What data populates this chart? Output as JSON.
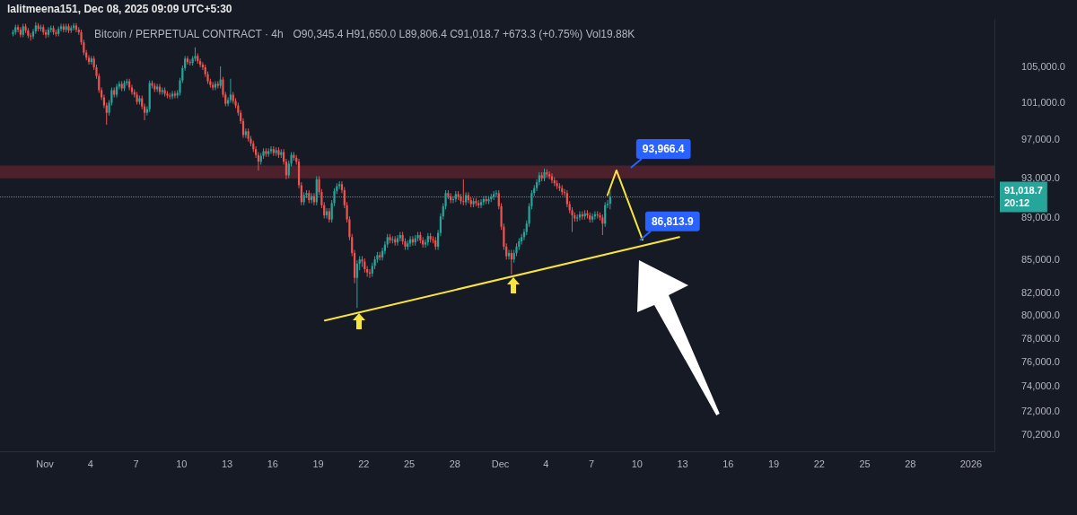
{
  "chart_data": {
    "type": "candlestick",
    "title": "Bitcoin / PERPETUAL CONTRACT · 4h",
    "subtitle": "O90,345.4 H91,650.0 L89,806.4 C91,018.7 +673.3 (+0.75%) Vol19.88K",
    "annotations": [
      "lalitmeena151, Dec 08, 2025 09:09 UTC+5:30",
      "20:12",
      {
        "text": "93,966.4",
        "x": "2025-12-09T14:10",
        "y": 93966.4
      },
      {
        "text": "86,813.9",
        "x": "2025-12-10T04:30",
        "y": 86813.9
      }
    ],
    "log": "y",
    "marker": "none",
    "line_style": "solid",
    "xlim": [
      "2025-10-29T01:00",
      "2026-01-02T13:00"
    ],
    "xticks": [
      {
        "value": "2025-11-01",
        "label": "Nov"
      },
      {
        "value": "2025-11-04",
        "label": "4"
      },
      {
        "value": "2025-11-07",
        "label": "7"
      },
      {
        "value": "2025-11-10",
        "label": "10"
      },
      {
        "value": "2025-11-13",
        "label": "13"
      },
      {
        "value": "2025-11-16",
        "label": "16"
      },
      {
        "value": "2025-11-19",
        "label": "19"
      },
      {
        "value": "2025-11-22",
        "label": "22"
      },
      {
        "value": "2025-11-25",
        "label": "25"
      },
      {
        "value": "2025-11-28",
        "label": "28"
      },
      {
        "value": "2025-12-01",
        "label": "Dec"
      },
      {
        "value": "2025-12-04",
        "label": "4"
      },
      {
        "value": "2025-12-07",
        "label": "7"
      },
      {
        "value": "2025-12-10",
        "label": "10"
      },
      {
        "value": "2025-12-13",
        "label": "13"
      },
      {
        "value": "2025-12-16",
        "label": "16"
      },
      {
        "value": "2025-12-19",
        "label": "19"
      },
      {
        "value": "2025-12-22",
        "label": "22"
      },
      {
        "value": "2025-12-25",
        "label": "25"
      },
      {
        "value": "2025-12-28",
        "label": "28"
      },
      {
        "value": "2026-01-01",
        "label": "2026"
      }
    ],
    "ylim": [
      68900,
      110500
    ],
    "yticks": [
      {
        "value": 105000,
        "label": "105,000.0"
      },
      {
        "value": 101000,
        "label": "101,000.0"
      },
      {
        "value": 97000,
        "label": "97,000.0"
      },
      {
        "value": 93000,
        "label": "93,000.0"
      },
      {
        "value": 89000,
        "label": "89,000.0"
      },
      {
        "value": 85000,
        "label": "85,000.0"
      },
      {
        "value": 82000,
        "label": "82,000.0"
      },
      {
        "value": 80000,
        "label": "80,000.0"
      },
      {
        "value": 78000,
        "label": "78,000.0"
      },
      {
        "value": 76000,
        "label": "76,000.0"
      },
      {
        "value": 74000,
        "label": "74,000.0"
      },
      {
        "value": 72000,
        "label": "72,000.0"
      },
      {
        "value": 70200,
        "label": "70,200.0"
      }
    ],
    "ref_lines": [
      {
        "axis": "y",
        "value": 91018.7,
        "label": "91,018.7",
        "color": "#26a69a",
        "line_style": "dotted"
      }
    ],
    "bands": [
      {
        "axis": "y",
        "from": 92900,
        "to": 94200,
        "color": "#f23645"
      }
    ],
    "series": [
      {
        "type": "candlestick",
        "x": [
          "2025-10-29T21:30",
          "2025-10-30T01:30",
          "2025-10-30T05:30",
          "2025-10-30T09:30",
          "2025-10-30T13:30",
          "2025-10-30T17:30",
          "2025-10-30T21:30",
          "2025-10-31T01:30",
          "2025-10-31T05:30",
          "2025-10-31T09:30",
          "2025-10-31T13:30",
          "2025-10-31T17:30",
          "2025-10-31T21:30",
          "2025-11-01T01:30",
          "2025-11-01T05:30",
          "2025-11-01T09:30",
          "2025-11-01T13:30",
          "2025-11-01T17:30",
          "2025-11-01T21:30",
          "2025-11-02T01:30",
          "2025-11-02T05:30",
          "2025-11-02T09:30",
          "2025-11-02T13:30",
          "2025-11-02T17:30",
          "2025-11-02T21:30",
          "2025-11-03T01:30",
          "2025-11-03T05:30",
          "2025-11-03T09:30",
          "2025-11-03T13:30",
          "2025-11-03T17:30",
          "2025-11-03T21:30",
          "2025-11-04T01:30",
          "2025-11-04T05:30",
          "2025-11-04T09:30",
          "2025-11-04T13:30",
          "2025-11-04T17:30",
          "2025-11-04T21:30",
          "2025-11-05T01:30",
          "2025-11-05T05:30",
          "2025-11-05T09:30",
          "2025-11-05T13:30",
          "2025-11-05T17:30",
          "2025-11-05T21:30",
          "2025-11-06T01:30",
          "2025-11-06T05:30",
          "2025-11-06T09:30",
          "2025-11-06T13:30",
          "2025-11-06T17:30",
          "2025-11-06T21:30",
          "2025-11-07T01:30",
          "2025-11-07T05:30",
          "2025-11-07T09:30",
          "2025-11-07T13:30",
          "2025-11-07T17:30",
          "2025-11-07T21:30",
          "2025-11-08T01:30",
          "2025-11-08T05:30",
          "2025-11-08T09:30",
          "2025-11-08T13:30",
          "2025-11-08T17:30",
          "2025-11-08T21:30",
          "2025-11-09T01:30",
          "2025-11-09T05:30",
          "2025-11-09T09:30",
          "2025-11-09T13:30",
          "2025-11-09T17:30",
          "2025-11-09T21:30",
          "2025-11-10T01:30",
          "2025-11-10T05:30",
          "2025-11-10T09:30",
          "2025-11-10T13:30",
          "2025-11-10T17:30",
          "2025-11-10T21:30",
          "2025-11-11T01:30",
          "2025-11-11T05:30",
          "2025-11-11T09:30",
          "2025-11-11T13:30",
          "2025-11-11T17:30",
          "2025-11-11T21:30",
          "2025-11-12T01:30",
          "2025-11-12T05:30",
          "2025-11-12T09:30",
          "2025-11-12T13:30",
          "2025-11-12T17:30",
          "2025-11-12T21:30",
          "2025-11-13T01:30",
          "2025-11-13T05:30",
          "2025-11-13T09:30",
          "2025-11-13T13:30",
          "2025-11-13T17:30",
          "2025-11-13T21:30",
          "2025-11-14T01:30",
          "2025-11-14T05:30",
          "2025-11-14T09:30",
          "2025-11-14T13:30",
          "2025-11-14T17:30",
          "2025-11-14T21:30",
          "2025-11-15T01:30",
          "2025-11-15T05:30",
          "2025-11-15T09:30",
          "2025-11-15T13:30",
          "2025-11-15T17:30",
          "2025-11-15T21:30",
          "2025-11-16T01:30",
          "2025-11-16T05:30",
          "2025-11-16T09:30",
          "2025-11-16T13:30",
          "2025-11-16T17:30",
          "2025-11-16T21:30",
          "2025-11-17T01:30",
          "2025-11-17T05:30",
          "2025-11-17T09:30",
          "2025-11-17T13:30",
          "2025-11-17T17:30",
          "2025-11-17T21:30",
          "2025-11-18T01:30",
          "2025-11-18T05:30",
          "2025-11-18T09:30",
          "2025-11-18T13:30",
          "2025-11-18T17:30",
          "2025-11-18T21:30",
          "2025-11-19T01:30",
          "2025-11-19T05:30",
          "2025-11-19T09:30",
          "2025-11-19T13:30",
          "2025-11-19T17:30",
          "2025-11-19T21:30",
          "2025-11-20T01:30",
          "2025-11-20T05:30",
          "2025-11-20T09:30",
          "2025-11-20T13:30",
          "2025-11-20T17:30",
          "2025-11-20T21:30",
          "2025-11-21T01:30",
          "2025-11-21T05:30",
          "2025-11-21T09:30",
          "2025-11-21T13:30",
          "2025-11-21T17:30",
          "2025-11-21T21:30",
          "2025-11-22T01:30",
          "2025-11-22T05:30",
          "2025-11-22T09:30",
          "2025-11-22T13:30",
          "2025-11-22T17:30",
          "2025-11-22T21:30",
          "2025-11-23T01:30",
          "2025-11-23T05:30",
          "2025-11-23T09:30",
          "2025-11-23T13:30",
          "2025-11-23T17:30",
          "2025-11-23T21:30",
          "2025-11-24T01:30",
          "2025-11-24T05:30",
          "2025-11-24T09:30",
          "2025-11-24T13:30",
          "2025-11-24T17:30",
          "2025-11-24T21:30",
          "2025-11-25T01:30",
          "2025-11-25T05:30",
          "2025-11-25T09:30",
          "2025-11-25T13:30",
          "2025-11-25T17:30",
          "2025-11-25T21:30",
          "2025-11-26T01:30",
          "2025-11-26T05:30",
          "2025-11-26T09:30",
          "2025-11-26T13:30",
          "2025-11-26T17:30",
          "2025-11-26T21:30",
          "2025-11-27T01:30",
          "2025-11-27T05:30",
          "2025-11-27T09:30",
          "2025-11-27T13:30",
          "2025-11-27T17:30",
          "2025-11-27T21:30",
          "2025-11-28T01:30",
          "2025-11-28T05:30",
          "2025-11-28T09:30",
          "2025-11-28T13:30",
          "2025-11-28T17:30",
          "2025-11-28T21:30",
          "2025-11-29T01:30",
          "2025-11-29T05:30",
          "2025-11-29T09:30",
          "2025-11-29T13:30",
          "2025-11-29T17:30",
          "2025-11-29T21:30",
          "2025-11-30T01:30",
          "2025-11-30T05:30",
          "2025-11-30T09:30",
          "2025-11-30T13:30",
          "2025-11-30T17:30",
          "2025-11-30T21:30",
          "2025-12-01T01:30",
          "2025-12-01T05:30",
          "2025-12-01T09:30",
          "2025-12-01T13:30",
          "2025-12-01T17:30",
          "2025-12-01T21:30",
          "2025-12-02T01:30",
          "2025-12-02T05:30",
          "2025-12-02T09:30",
          "2025-12-02T13:30",
          "2025-12-02T17:30",
          "2025-12-02T21:30",
          "2025-12-03T01:30",
          "2025-12-03T05:30",
          "2025-12-03T09:30",
          "2025-12-03T13:30",
          "2025-12-03T17:30",
          "2025-12-03T21:30",
          "2025-12-04T01:30",
          "2025-12-04T05:30",
          "2025-12-04T09:30",
          "2025-12-04T13:30",
          "2025-12-04T17:30",
          "2025-12-04T21:30",
          "2025-12-05T01:30",
          "2025-12-05T05:30",
          "2025-12-05T09:30",
          "2025-12-05T13:30",
          "2025-12-05T17:30",
          "2025-12-05T21:30",
          "2025-12-06T01:30",
          "2025-12-06T05:30",
          "2025-12-06T09:30",
          "2025-12-06T13:30",
          "2025-12-06T17:30",
          "2025-12-06T21:30",
          "2025-12-07T01:30",
          "2025-12-07T05:30",
          "2025-12-07T09:30",
          "2025-12-07T13:30",
          "2025-12-07T17:30",
          "2025-12-07T21:30",
          "2025-12-08T01:30",
          "2025-12-08T05:30"
        ],
        "ohlc": [
          [
            108800,
            109300,
            108500,
            109000
          ],
          [
            109000,
            109900,
            108700,
            109600
          ],
          [
            109600,
            109900,
            109000,
            109300
          ],
          [
            109300,
            109600,
            108400,
            108700
          ],
          [
            108700,
            110000,
            108400,
            109700
          ],
          [
            109700,
            110000,
            108900,
            109200
          ],
          [
            109200,
            109500,
            108300,
            108600
          ],
          [
            108600,
            108900,
            108000,
            108500
          ],
          [
            108500,
            109400,
            108200,
            109100
          ],
          [
            109100,
            110200,
            108800,
            109800
          ],
          [
            109800,
            110100,
            109100,
            109400
          ],
          [
            109400,
            109900,
            109100,
            109600
          ],
          [
            109600,
            109900,
            108700,
            109000
          ],
          [
            109000,
            109300,
            108300,
            108700
          ],
          [
            108700,
            109600,
            108400,
            109300
          ],
          [
            109300,
            109800,
            109000,
            109500
          ],
          [
            109500,
            109800,
            108700,
            109000
          ],
          [
            109000,
            109300,
            108500,
            108800
          ],
          [
            108800,
            109700,
            108500,
            109400
          ],
          [
            109400,
            110000,
            109100,
            109700
          ],
          [
            109700,
            110000,
            109000,
            109300
          ],
          [
            109300,
            110000,
            109000,
            109700
          ],
          [
            109700,
            110000,
            108900,
            109200
          ],
          [
            109200,
            109800,
            108900,
            109500
          ],
          [
            109500,
            110100,
            109200,
            109800
          ],
          [
            109800,
            110100,
            109000,
            109300
          ],
          [
            109300,
            109600,
            108700,
            109000
          ],
          [
            109000,
            109300,
            107500,
            107800
          ],
          [
            107800,
            108100,
            106300,
            106600
          ],
          [
            106600,
            106900,
            105700,
            106000
          ],
          [
            106000,
            106300,
            105200,
            105500
          ],
          [
            105500,
            106200,
            105200,
            105900
          ],
          [
            105900,
            106200,
            104600,
            104900
          ],
          [
            104900,
            105200,
            103600,
            103900
          ],
          [
            103900,
            104200,
            102000,
            102300
          ],
          [
            102300,
            102600,
            101200,
            101500
          ],
          [
            101500,
            101800,
            100300,
            100600
          ],
          [
            100600,
            100900,
            98500,
            99800
          ],
          [
            99800,
            101200,
            99500,
            100900
          ],
          [
            100900,
            102600,
            100600,
            102300
          ],
          [
            102300,
            102600,
            101500,
            101800
          ],
          [
            101800,
            103000,
            101500,
            102700
          ],
          [
            102700,
            103300,
            102400,
            103000
          ],
          [
            103000,
            103300,
            102200,
            102500
          ],
          [
            102500,
            103400,
            102200,
            103100
          ],
          [
            103100,
            103600,
            102800,
            103300
          ],
          [
            103300,
            103600,
            102300,
            102600
          ],
          [
            102600,
            102900,
            101800,
            102100
          ],
          [
            102100,
            102400,
            101500,
            101800
          ],
          [
            101800,
            102100,
            100700,
            101000
          ],
          [
            101000,
            101700,
            100700,
            101400
          ],
          [
            101400,
            101700,
            100200,
            100500
          ],
          [
            100500,
            100800,
            99000,
            99800
          ],
          [
            99800,
            100500,
            99500,
            100200
          ],
          [
            100200,
            103400,
            99900,
            103100
          ],
          [
            103100,
            103400,
            102500,
            102800
          ],
          [
            102800,
            103100,
            102100,
            102400
          ],
          [
            102400,
            103000,
            102100,
            102700
          ],
          [
            102700,
            103000,
            101800,
            102100
          ],
          [
            102100,
            102600,
            101800,
            102300
          ],
          [
            102300,
            102600,
            101600,
            101900
          ],
          [
            101900,
            102200,
            101400,
            101700
          ],
          [
            101700,
            102000,
            101300,
            101600
          ],
          [
            101600,
            102200,
            101300,
            101900
          ],
          [
            101900,
            102200,
            101400,
            101700
          ],
          [
            101700,
            102300,
            101400,
            102000
          ],
          [
            102000,
            103700,
            101700,
            103400
          ],
          [
            103400,
            105100,
            103100,
            104800
          ],
          [
            104800,
            106200,
            104500,
            105900
          ],
          [
            105900,
            106200,
            105200,
            105500
          ],
          [
            105500,
            105800,
            105100,
            105400
          ],
          [
            105400,
            106200,
            105100,
            105900
          ],
          [
            105900,
            107200,
            105600,
            106200
          ],
          [
            106200,
            106500,
            105300,
            105600
          ],
          [
            105600,
            105900,
            104900,
            105200
          ],
          [
            105200,
            105500,
            104600,
            104900
          ],
          [
            104900,
            105200,
            103800,
            104100
          ],
          [
            104100,
            104400,
            103000,
            103300
          ],
          [
            103300,
            103600,
            102600,
            102900
          ],
          [
            102900,
            103200,
            102300,
            102600
          ],
          [
            102600,
            103300,
            102300,
            103000
          ],
          [
            103000,
            103300,
            102500,
            102800
          ],
          [
            102800,
            105000,
            102500,
            103500
          ],
          [
            103500,
            103800,
            101500,
            101800
          ],
          [
            101800,
            102100,
            100500,
            100800
          ],
          [
            100800,
            101500,
            100500,
            101200
          ],
          [
            101200,
            103600,
            100900,
            101800
          ],
          [
            101800,
            102100,
            100800,
            101100
          ],
          [
            101100,
            101400,
            100300,
            100600
          ],
          [
            100600,
            100900,
            99500,
            99800
          ],
          [
            99800,
            100100,
            98600,
            98900
          ],
          [
            98900,
            99200,
            97100,
            97400
          ],
          [
            97400,
            98100,
            97100,
            97800
          ],
          [
            97800,
            98100,
            96700,
            97000
          ],
          [
            97000,
            97300,
            96200,
            96500
          ],
          [
            96500,
            96800,
            95600,
            95900
          ],
          [
            95900,
            96200,
            95000,
            95300
          ],
          [
            95300,
            95600,
            93700,
            94600
          ],
          [
            94600,
            95500,
            94300,
            95200
          ],
          [
            95200,
            96000,
            94900,
            95700
          ],
          [
            95700,
            96000,
            95100,
            95400
          ],
          [
            95400,
            96000,
            95100,
            95700
          ],
          [
            95700,
            96200,
            95400,
            95900
          ],
          [
            95900,
            96200,
            95200,
            95500
          ],
          [
            95500,
            96100,
            95200,
            95800
          ],
          [
            95800,
            96100,
            95000,
            95300
          ],
          [
            95300,
            95900,
            95000,
            95600
          ],
          [
            95600,
            95900,
            94300,
            94600
          ],
          [
            94600,
            94900,
            92800,
            93200
          ],
          [
            93200,
            94700,
            92900,
            94400
          ],
          [
            94400,
            95600,
            94100,
            95300
          ],
          [
            95300,
            95600,
            94700,
            95000
          ],
          [
            95000,
            95300,
            94300,
            94600
          ],
          [
            94600,
            94900,
            91900,
            92200
          ],
          [
            92200,
            92500,
            90200,
            90500
          ],
          [
            90500,
            91500,
            90200,
            91200
          ],
          [
            91200,
            91700,
            90900,
            91400
          ],
          [
            91400,
            91700,
            90400,
            90700
          ],
          [
            90700,
            91400,
            90400,
            91100
          ],
          [
            91100,
            91400,
            90200,
            90500
          ],
          [
            90500,
            93100,
            90200,
            92800
          ],
          [
            92800,
            93100,
            91200,
            91500
          ],
          [
            91500,
            91800,
            89900,
            90200
          ],
          [
            90200,
            90500,
            88900,
            89200
          ],
          [
            89200,
            89900,
            88900,
            89600
          ],
          [
            89600,
            89900,
            88500,
            88800
          ],
          [
            88800,
            90700,
            88500,
            90400
          ],
          [
            90400,
            91900,
            90100,
            91600
          ],
          [
            91600,
            92400,
            91300,
            92100
          ],
          [
            92100,
            92600,
            91800,
            92300
          ],
          [
            92300,
            92600,
            91400,
            91700
          ],
          [
            91700,
            92000,
            89900,
            90200
          ],
          [
            90200,
            90500,
            88500,
            88800
          ],
          [
            88800,
            89100,
            86800,
            87100
          ],
          [
            87100,
            87400,
            85300,
            85600
          ],
          [
            85600,
            85900,
            82800,
            83300
          ],
          [
            83300,
            84900,
            80600,
            84600
          ],
          [
            84600,
            85300,
            84000,
            85000
          ],
          [
            85000,
            85300,
            84300,
            84800
          ],
          [
            84800,
            85100,
            83800,
            84100
          ],
          [
            84100,
            84400,
            83400,
            83800
          ],
          [
            83800,
            84100,
            83300,
            83700
          ],
          [
            83700,
            84700,
            83400,
            84400
          ],
          [
            84400,
            85300,
            84100,
            85000
          ],
          [
            85000,
            85700,
            84700,
            85400
          ],
          [
            85400,
            85700,
            84900,
            85200
          ],
          [
            85200,
            86100,
            84900,
            85800
          ],
          [
            85800,
            86700,
            85500,
            86400
          ],
          [
            86400,
            87400,
            86100,
            87100
          ],
          [
            87100,
            87400,
            86500,
            86800
          ],
          [
            86800,
            87200,
            86500,
            86900
          ],
          [
            86900,
            87200,
            86300,
            86600
          ],
          [
            86600,
            87300,
            86300,
            87000
          ],
          [
            87000,
            87600,
            86700,
            87300
          ],
          [
            87300,
            87600,
            86400,
            86700
          ],
          [
            86700,
            87000,
            85900,
            86200
          ],
          [
            86200,
            86800,
            85900,
            86500
          ],
          [
            86500,
            87200,
            86200,
            86900
          ],
          [
            86900,
            87200,
            86300,
            86600
          ],
          [
            86600,
            87300,
            86300,
            87000
          ],
          [
            87000,
            87600,
            86700,
            87300
          ],
          [
            87300,
            87600,
            86500,
            86800
          ],
          [
            86800,
            87100,
            86100,
            86400
          ],
          [
            86400,
            86900,
            86100,
            86600
          ],
          [
            86600,
            87500,
            86300,
            87200
          ],
          [
            87200,
            87500,
            86600,
            86900
          ],
          [
            86900,
            87200,
            86500,
            86800
          ],
          [
            86800,
            87100,
            85900,
            86200
          ],
          [
            86200,
            87800,
            85900,
            87500
          ],
          [
            87500,
            89400,
            87200,
            89100
          ],
          [
            89100,
            90400,
            88800,
            90100
          ],
          [
            90100,
            91700,
            89800,
            91400
          ],
          [
            91400,
            91700,
            90800,
            91100
          ],
          [
            91100,
            91400,
            90400,
            90700
          ],
          [
            90700,
            91100,
            90400,
            90800
          ],
          [
            90800,
            91600,
            90500,
            91300
          ],
          [
            91300,
            91600,
            90700,
            91000
          ],
          [
            91000,
            91300,
            90300,
            90600
          ],
          [
            90600,
            92800,
            90200,
            90500
          ],
          [
            90500,
            91500,
            90200,
            91200
          ],
          [
            91200,
            91500,
            90400,
            90700
          ],
          [
            90700,
            91000,
            90000,
            90300
          ],
          [
            90300,
            90900,
            90000,
            90600
          ],
          [
            90600,
            90900,
            90100,
            90400
          ],
          [
            90400,
            90700,
            89900,
            90200
          ],
          [
            90200,
            90800,
            89900,
            90500
          ],
          [
            90500,
            91100,
            90200,
            90800
          ],
          [
            90800,
            91100,
            90300,
            90600
          ],
          [
            90600,
            91100,
            90300,
            90800
          ],
          [
            90800,
            91300,
            90500,
            91000
          ],
          [
            91000,
            91600,
            90700,
            91300
          ],
          [
            91300,
            91700,
            91000,
            91400
          ],
          [
            91400,
            91700,
            89800,
            90100
          ],
          [
            90100,
            90400,
            87800,
            88100
          ],
          [
            88100,
            88400,
            85900,
            86200
          ],
          [
            86200,
            86500,
            85000,
            85300
          ],
          [
            85300,
            85900,
            85000,
            85600
          ],
          [
            85600,
            85900,
            83600,
            85000
          ],
          [
            85000,
            85900,
            84700,
            85600
          ],
          [
            85600,
            86500,
            85300,
            86200
          ],
          [
            86200,
            87000,
            85900,
            86700
          ],
          [
            86700,
            87400,
            86400,
            87100
          ],
          [
            87100,
            87900,
            86800,
            87600
          ],
          [
            87600,
            88700,
            87300,
            88400
          ],
          [
            88400,
            90400,
            88100,
            90100
          ],
          [
            90100,
            91700,
            89800,
            91400
          ],
          [
            91400,
            92200,
            91100,
            91900
          ],
          [
            91900,
            92800,
            91600,
            92500
          ],
          [
            92500,
            93500,
            92200,
            93200
          ],
          [
            93200,
            93500,
            92600,
            92900
          ],
          [
            92900,
            93900,
            92600,
            93500
          ],
          [
            93500,
            93800,
            93000,
            93300
          ],
          [
            93300,
            93600,
            92800,
            93100
          ],
          [
            93100,
            93400,
            92400,
            92700
          ],
          [
            92700,
            93000,
            92100,
            92400
          ],
          [
            92400,
            92700,
            91800,
            92100
          ],
          [
            92100,
            92400,
            91600,
            91900
          ],
          [
            91900,
            92200,
            91200,
            91500
          ],
          [
            91500,
            91800,
            91100,
            91400
          ],
          [
            91400,
            91700,
            90000,
            90300
          ],
          [
            90300,
            90600,
            89400,
            89700
          ],
          [
            89700,
            90000,
            87600,
            89200
          ],
          [
            89200,
            89500,
            88600,
            88900
          ],
          [
            88900,
            89300,
            88600,
            89000
          ],
          [
            89000,
            89600,
            88700,
            89300
          ],
          [
            89300,
            89600,
            88800,
            89100
          ],
          [
            89100,
            89700,
            88800,
            89400
          ],
          [
            89400,
            89700,
            88900,
            89200
          ],
          [
            89200,
            89500,
            88500,
            88800
          ],
          [
            88800,
            89400,
            88500,
            89100
          ],
          [
            89100,
            89600,
            88800,
            89300
          ],
          [
            89300,
            89600,
            88900,
            89200
          ],
          [
            89200,
            89500,
            88700,
            89000
          ],
          [
            89000,
            89300,
            87300,
            88400
          ],
          [
            88400,
            90500,
            88100,
            90200
          ],
          [
            90200,
            90700,
            89900,
            90345.4
          ],
          [
            90345.4,
            91650,
            89806.4,
            91018.7
          ]
        ]
      },
      {
        "type": "line",
        "color": "#f7e43f",
        "x": [
          "2025-11-19T10:30",
          "2025-12-12T18:45"
        ],
        "values": [
          79500,
          87100
        ]
      },
      {
        "type": "line",
        "color": "#f7e43f",
        "x": [
          "2025-12-08T01:20",
          "2025-12-08T15:30",
          "2025-12-10T08:40"
        ],
        "values": [
          91200,
          93700,
          86850
        ]
      }
    ]
  }
}
